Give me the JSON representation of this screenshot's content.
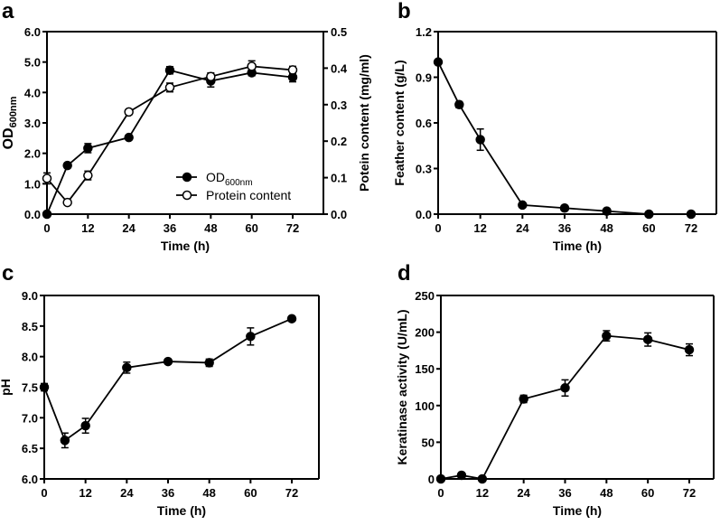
{
  "chart_data": [
    {
      "panel": "a",
      "type": "line",
      "xlabel": "Time (h)",
      "ylabel": "OD",
      "ylabel_sub": "600nm",
      "y2label": "Potein content (mg/ml)",
      "xticks": [
        0,
        12,
        24,
        36,
        48,
        60,
        72
      ],
      "xlim": [
        0,
        80
      ],
      "ylim": [
        0,
        6
      ],
      "yticks": [
        "0.0",
        "1.0",
        "2.0",
        "3.0",
        "4.0",
        "5.0",
        "6.0"
      ],
      "y2lim": [
        0,
        0.5
      ],
      "y2ticks": [
        "0.0",
        "0.1",
        "0.2",
        "0.3",
        "0.4",
        "0.5"
      ],
      "legend": {
        "placement": "bottom-right",
        "entries": [
          {
            "label": "OD",
            "sub": "600nm"
          },
          {
            "label": "Protein content",
            "sub": ""
          }
        ]
      },
      "series": [
        {
          "name": "OD600nm",
          "marker": "filled",
          "axis": "left",
          "x": [
            0,
            6,
            12,
            24,
            36,
            48,
            60,
            72
          ],
          "y": [
            0,
            1.6,
            2.17,
            2.52,
            4.73,
            4.38,
            4.65,
            4.5
          ],
          "err": [
            0.03,
            0.05,
            0.15,
            0.05,
            0.12,
            0.2,
            0.1,
            0.15
          ]
        },
        {
          "name": "Protein content",
          "marker": "open",
          "axis": "right",
          "x": [
            0,
            6,
            12,
            24,
            36,
            48,
            60,
            72
          ],
          "y": [
            0.098,
            0.032,
            0.106,
            0.28,
            0.347,
            0.377,
            0.405,
            0.395
          ],
          "err": [
            0.015,
            0.005,
            0.012,
            0.007,
            0.012,
            0.01,
            0.015,
            0.01
          ]
        }
      ]
    },
    {
      "panel": "b",
      "type": "line",
      "xlabel": "Time (h)",
      "ylabel": "Feather content (g/L)",
      "xticks": [
        0,
        12,
        24,
        36,
        48,
        60,
        72
      ],
      "xlim": [
        0,
        77
      ],
      "ylim": [
        0,
        1.2
      ],
      "yticks": [
        "0.0",
        "0.3",
        "0.6",
        "0.9",
        "1.2"
      ],
      "series": [
        {
          "name": "Feather content",
          "marker": "filled",
          "axis": "left",
          "x": [
            0,
            6,
            12,
            24,
            36,
            48,
            60,
            72
          ],
          "y": [
            1.0,
            0.72,
            0.49,
            0.06,
            0.04,
            0.02,
            0.0,
            0.0
          ],
          "err": [
            0.01,
            0.02,
            0.07,
            0.005,
            0.005,
            0.005,
            0,
            0
          ]
        }
      ]
    },
    {
      "panel": "c",
      "type": "line",
      "xlabel": "Time (h)",
      "ylabel": "pH",
      "xticks": [
        0,
        12,
        24,
        36,
        48,
        60,
        72
      ],
      "xlim": [
        0,
        80
      ],
      "ylim": [
        6,
        9
      ],
      "yticks": [
        "6.0",
        "6.5",
        "7.0",
        "7.5",
        "8.0",
        "8.5",
        "9.0"
      ],
      "series": [
        {
          "name": "pH",
          "marker": "filled",
          "axis": "left",
          "x": [
            0,
            6,
            12,
            24,
            36,
            48,
            60,
            72
          ],
          "y": [
            7.5,
            6.63,
            6.87,
            7.82,
            7.92,
            7.9,
            8.33,
            8.62
          ],
          "err": [
            0.06,
            0.12,
            0.12,
            0.09,
            0.03,
            0.06,
            0.14,
            0.03
          ]
        }
      ]
    },
    {
      "panel": "d",
      "type": "line",
      "xlabel": "Time (h)",
      "ylabel": "Keratinase activity (U/mL)",
      "xticks": [
        0,
        12,
        24,
        36,
        48,
        60,
        72
      ],
      "xlim": [
        0,
        78
      ],
      "ylim": [
        0,
        250
      ],
      "yticks": [
        "0",
        "50",
        "100",
        "150",
        "200",
        "250"
      ],
      "series": [
        {
          "name": "Keratinase activity",
          "marker": "filled",
          "axis": "left",
          "x": [
            0,
            6,
            12,
            24,
            36,
            48,
            60,
            72
          ],
          "y": [
            0,
            5,
            0,
            109,
            124,
            195,
            190,
            176
          ],
          "err": [
            1,
            2,
            1,
            5,
            11,
            7,
            9,
            8
          ]
        }
      ]
    }
  ]
}
